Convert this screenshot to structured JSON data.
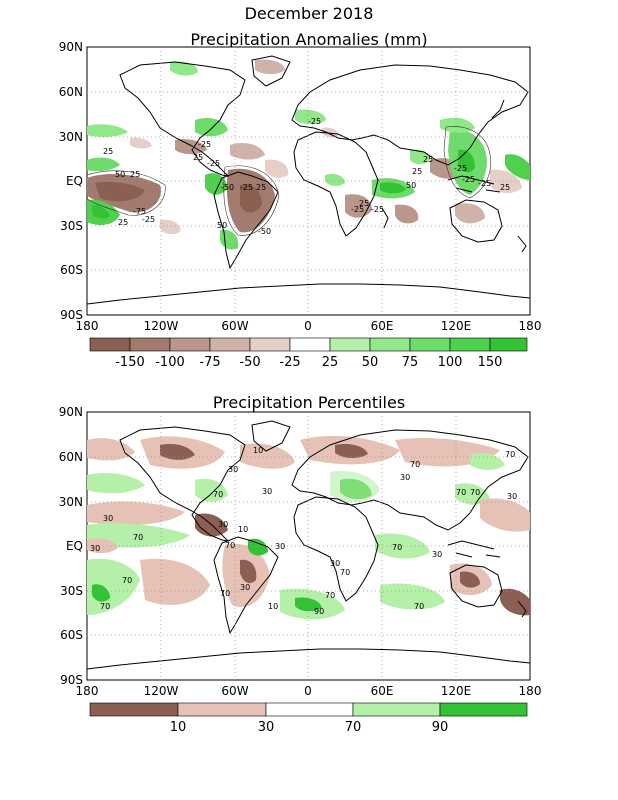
{
  "header": {
    "title": "December 2018"
  },
  "top_map": {
    "title": "Precipitation Anomalies (mm)",
    "lat_labels": [
      "90N",
      "60N",
      "30N",
      "EQ",
      "30S",
      "60S",
      "90S"
    ],
    "lon_labels": [
      "180",
      "120W",
      "60W",
      "0",
      "60E",
      "120E",
      "180"
    ],
    "colorbar": {
      "colors": [
        "#8b5f52",
        "#a27a6e",
        "#ba978b",
        "#d0b3a8",
        "#e6cfc6",
        "#ffffff",
        "#b4f0a8",
        "#90e888",
        "#6edc6a",
        "#4fd04f",
        "#33c233"
      ],
      "labels": [
        "-150",
        "-100",
        "-75",
        "-50",
        "-25",
        "25",
        "50",
        "75",
        "100",
        "150"
      ]
    },
    "contour_labels": [
      "25",
      "-25",
      "50",
      "-50",
      "-75",
      "25",
      "-25",
      "-50",
      "-50",
      "50",
      "-25",
      "25",
      "-25",
      "25",
      "-25",
      "50",
      "25",
      "25",
      "-25",
      "-25",
      "25",
      "-25",
      "-25",
      "-25",
      "25"
    ]
  },
  "bottom_map": {
    "title": "Precipitation Percentiles",
    "lat_labels": [
      "90N",
      "60N",
      "30N",
      "EQ",
      "30S",
      "60S",
      "90S"
    ],
    "lon_labels": [
      "180",
      "120W",
      "60W",
      "0",
      "60E",
      "120E",
      "180"
    ],
    "colorbar": {
      "colors": [
        "#8b5f52",
        "#e6c2b6",
        "#ffffff",
        "#b4f0a8",
        "#33c233"
      ],
      "labels": [
        "10",
        "30",
        "70",
        "90"
      ]
    },
    "contour_labels": [
      "10",
      "70",
      "30",
      "70",
      "30",
      "70",
      "30",
      "30",
      "70",
      "30",
      "30",
      "10",
      "70",
      "30",
      "70",
      "10",
      "70",
      "30",
      "70",
      "30",
      "90",
      "70",
      "70",
      "30",
      "70",
      "30",
      "70",
      "70",
      "70"
    ]
  }
}
